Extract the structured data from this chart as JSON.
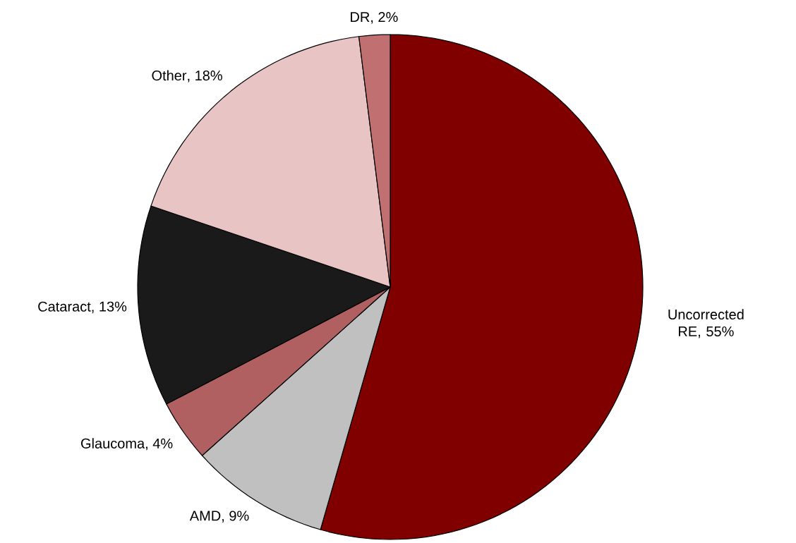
{
  "chart_data": {
    "type": "pie",
    "categories": [
      "Uncorrected RE",
      "AMD",
      "Glaucoma",
      "Cataract",
      "Other",
      "DR"
    ],
    "values": [
      55,
      9,
      4,
      13,
      18,
      2
    ],
    "value_labels": [
      ", 55%",
      ", 9%",
      ", 4%",
      ", 13%",
      ", 18%",
      ", 2%"
    ],
    "colors": [
      "#800000",
      "#c0c0c0",
      "#b06060",
      "#1a1a1a",
      "#e8c4c4",
      "#c07070"
    ]
  }
}
